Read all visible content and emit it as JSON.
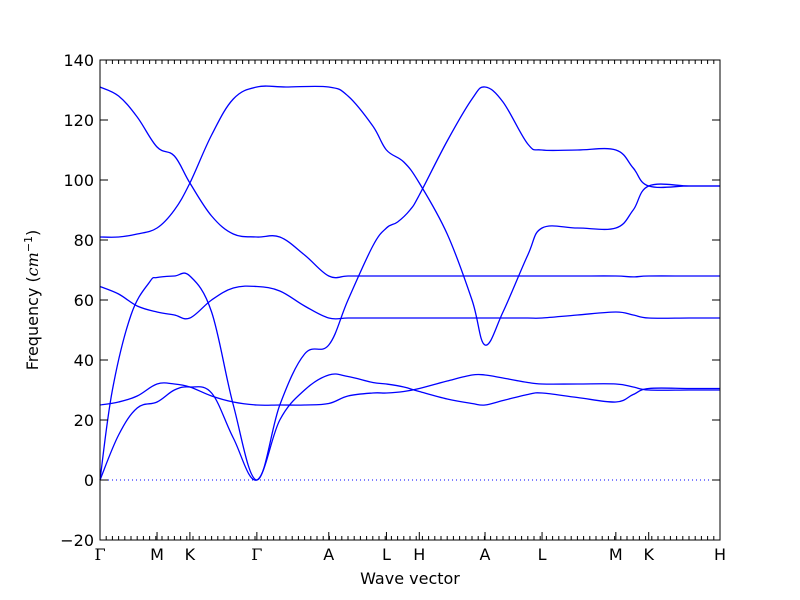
{
  "chart_data": {
    "type": "line",
    "xlabel": "Wave vector",
    "ylabel": "Frequency (cm⁻¹)",
    "ylabel_parts": {
      "text": "Frequency (",
      "unit": "cm",
      "exp": "−1",
      "close": ")"
    },
    "ylim": [
      -20,
      140
    ],
    "yticks": [
      -20,
      0,
      20,
      40,
      60,
      80,
      100,
      120,
      140
    ],
    "xlim": [
      0,
      1
    ],
    "high_symmetry_points": [
      {
        "label": "Γ",
        "x": 0.0
      },
      {
        "label": "M",
        "x": 0.092
      },
      {
        "label": "K",
        "x": 0.145
      },
      {
        "label": "Γ",
        "x": 0.253
      },
      {
        "label": "A",
        "x": 0.369
      },
      {
        "label": "L",
        "x": 0.462
      },
      {
        "label": "H",
        "x": 0.515
      },
      {
        "label": "A",
        "x": 0.621
      },
      {
        "label": "L",
        "x": 0.713
      },
      {
        "label": "M",
        "x": 0.832
      },
      {
        "label": "K",
        "x": 0.885
      },
      {
        "label": "H",
        "x": 1.0
      }
    ],
    "grid": false,
    "zero_line": {
      "y": 0,
      "style": "dotted"
    },
    "line_color": "#0000ff",
    "series": [
      {
        "x": [
          0,
          0.03,
          0.06,
          0.092,
          0.12,
          0.145,
          0.18,
          0.215,
          0.253,
          0.29,
          0.33,
          0.369,
          0.4,
          0.44,
          0.462,
          0.49,
          0.515,
          0.56,
          0.6,
          0.621,
          0.65,
          0.69,
          0.713,
          0.77,
          0.832,
          0.86,
          0.885,
          0.95,
          1.0
        ],
        "y": [
          131,
          128,
          121,
          111,
          108,
          99,
          88,
          82,
          81,
          81,
          75,
          68,
          68,
          68,
          68,
          68,
          68,
          68,
          68,
          68,
          68,
          68,
          68,
          68,
          68,
          67.7,
          68,
          68,
          68
        ]
      },
      {
        "x": [
          0,
          0.03,
          0.06,
          0.092,
          0.12,
          0.145,
          0.18,
          0.215,
          0.253,
          0.3,
          0.369,
          0.4,
          0.44,
          0.462,
          0.49,
          0.515,
          0.56,
          0.6,
          0.621,
          0.65,
          0.69,
          0.713,
          0.77,
          0.832,
          0.86,
          0.885,
          0.95,
          1.0
        ],
        "y": [
          81,
          81,
          82,
          84,
          90,
          99,
          115,
          127,
          131,
          131,
          131,
          128,
          118,
          110,
          106,
          99,
          82,
          60,
          45,
          56,
          75,
          84,
          84,
          84,
          90,
          98,
          98,
          98
        ]
      },
      {
        "x": [
          0,
          0.02,
          0.05,
          0.08,
          0.092,
          0.12,
          0.145,
          0.18,
          0.215,
          0.253,
          0.29,
          0.33,
          0.369,
          0.4,
          0.44,
          0.462,
          0.48,
          0.5,
          0.515,
          0.56,
          0.6,
          0.621,
          0.65,
          0.69,
          0.713,
          0.77,
          0.832,
          0.86,
          0.885,
          0.95,
          1.0
        ],
        "y": [
          0,
          30,
          55,
          66,
          67.5,
          68,
          68,
          56,
          25,
          0,
          25,
          42,
          45,
          60,
          78,
          84,
          86,
          90,
          95,
          113,
          127,
          131,
          126,
          112,
          110,
          110,
          110,
          104,
          98,
          98,
          98
        ]
      },
      {
        "x": [
          0,
          0.03,
          0.06,
          0.092,
          0.12,
          0.145,
          0.18,
          0.215,
          0.253,
          0.29,
          0.33,
          0.369,
          0.4,
          0.44,
          0.462,
          0.49,
          0.515,
          0.56,
          0.6,
          0.621,
          0.65,
          0.69,
          0.713,
          0.77,
          0.832,
          0.86,
          0.885,
          0.95,
          1.0
        ],
        "y": [
          64.5,
          62,
          58,
          56,
          55,
          54,
          60,
          64,
          64.5,
          63,
          58,
          54,
          54,
          54,
          54,
          54,
          54,
          54,
          54,
          54,
          54,
          54,
          54,
          55,
          56,
          55,
          54,
          54,
          54
        ]
      },
      {
        "x": [
          0,
          0.03,
          0.06,
          0.092,
          0.12,
          0.145,
          0.18,
          0.215,
          0.253,
          0.29,
          0.33,
          0.369,
          0.4,
          0.44,
          0.462,
          0.49,
          0.515,
          0.56,
          0.6,
          0.621,
          0.65,
          0.69,
          0.713,
          0.77,
          0.832,
          0.86,
          0.885,
          0.95,
          1.0
        ],
        "y": [
          25,
          26,
          28,
          32,
          32,
          31,
          28,
          26,
          25,
          25,
          25,
          25.5,
          28,
          29,
          29,
          29.5,
          30.5,
          33,
          35,
          35,
          34,
          32.5,
          32,
          32,
          32,
          31,
          30,
          30,
          30
        ]
      },
      {
        "x": [
          0,
          0.03,
          0.06,
          0.092,
          0.12,
          0.145,
          0.18,
          0.215,
          0.253,
          0.29,
          0.33,
          0.369,
          0.4,
          0.44,
          0.462,
          0.49,
          0.515,
          0.56,
          0.6,
          0.621,
          0.65,
          0.69,
          0.713,
          0.77,
          0.832,
          0.86,
          0.885,
          0.95,
          1.0
        ],
        "y": [
          0,
          15,
          24,
          26,
          30,
          31,
          29,
          14,
          0,
          20,
          30,
          35,
          34.5,
          32.5,
          32,
          31,
          29.5,
          27,
          25.5,
          25,
          26.5,
          28.5,
          29,
          27.5,
          26,
          28.5,
          30.5,
          30.5,
          30.5
        ]
      }
    ]
  }
}
